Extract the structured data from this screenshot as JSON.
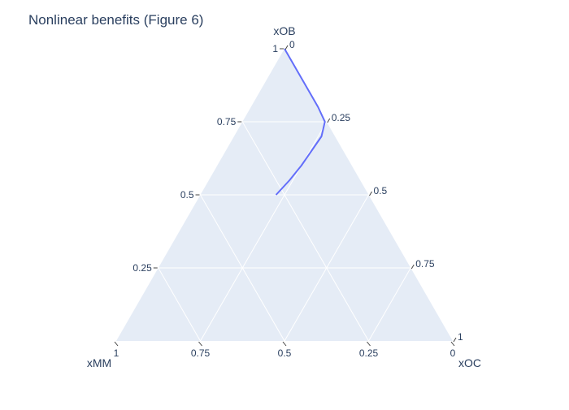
{
  "chart_data": {
    "type": "ternary",
    "title": "Nonlinear benefits (Figure 6)",
    "axes": {
      "top": {
        "label": "xOB",
        "ticks": [
          "0.25",
          "0.5",
          "0.75",
          "1"
        ]
      },
      "left": {
        "label": "xMM",
        "ticks": [
          "0",
          "0.25",
          "0.5",
          "0.75",
          "1"
        ]
      },
      "right": {
        "label": "xOC",
        "ticks": [
          "0",
          "0.25",
          "0.5",
          "0.75",
          "1"
        ]
      }
    },
    "grid": true,
    "series": [
      {
        "mode": "lines",
        "points": [
          {
            "xOB": 1.0,
            "xOC": 0.0,
            "xMM": 0.0
          },
          {
            "xOB": 0.9,
            "xOC": 0.1,
            "xMM": 0.0
          },
          {
            "xOB": 0.8,
            "xOC": 0.2,
            "xMM": 0.0
          },
          {
            "xOB": 0.75,
            "xOC": 0.245,
            "xMM": 0.005
          },
          {
            "xOB": 0.7,
            "xOC": 0.26,
            "xMM": 0.04
          },
          {
            "xOB": 0.65,
            "xOC": 0.255,
            "xMM": 0.095
          },
          {
            "xOB": 0.6,
            "xOC": 0.25,
            "xMM": 0.15
          },
          {
            "xOB": 0.55,
            "xOC": 0.24,
            "xMM": 0.21
          },
          {
            "xOB": 0.5,
            "xOC": 0.225,
            "xMM": 0.275
          }
        ],
        "color": "#636efa"
      }
    ]
  },
  "colors": {
    "plot_bg": "#e5ecf6",
    "text": "#2a3f5f",
    "line": "#636efa"
  }
}
